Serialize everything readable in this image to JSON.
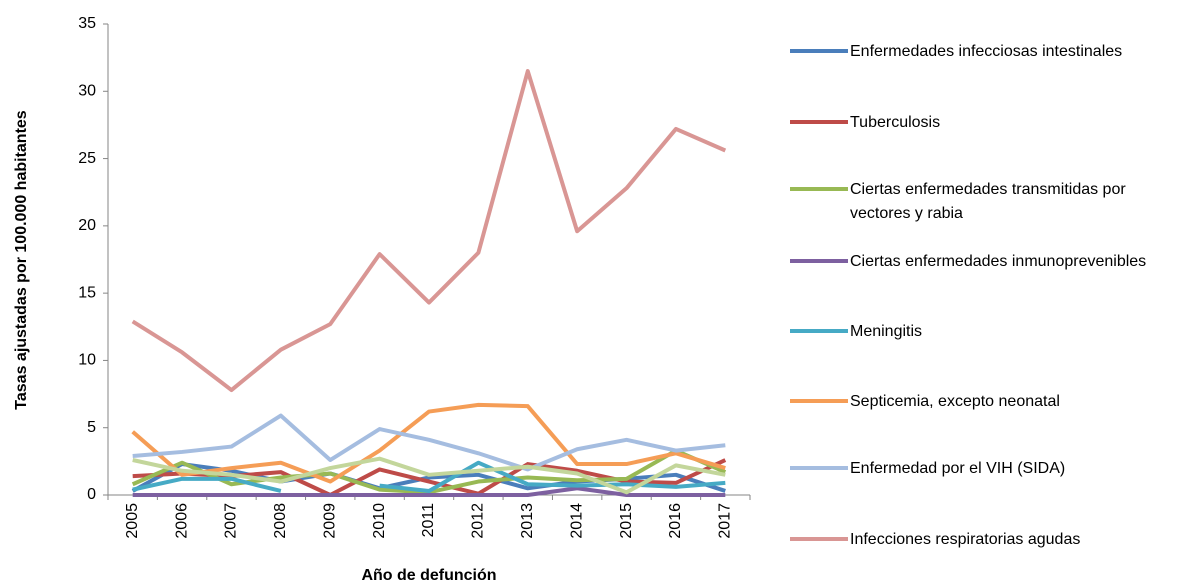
{
  "chart_data": {
    "type": "line",
    "xlabel": "Año de defunción",
    "ylabel": "Tasas ajustadas por 100.000 habitantes",
    "categories": [
      "2005",
      "2006",
      "2007",
      "2008",
      "2009",
      "2010",
      "2011",
      "2012",
      "2013",
      "2014",
      "2015",
      "2016",
      "2017"
    ],
    "ylim": [
      0,
      35
    ],
    "yticks": [
      0,
      5,
      10,
      15,
      20,
      25,
      30,
      35
    ],
    "series": [
      {
        "name": "Enfermedades infecciosas intestinales",
        "color": "#4a7ebb",
        "values": [
          0.3,
          2.3,
          1.8,
          1.0,
          1.6,
          0.5,
          1.3,
          1.5,
          0.5,
          1.0,
          1.2,
          1.5,
          0.3
        ]
      },
      {
        "name": "Tuberculosis",
        "color": "#be4b48",
        "values": [
          1.4,
          1.6,
          1.4,
          1.7,
          0.0,
          1.9,
          1.0,
          0.1,
          2.3,
          1.8,
          1.0,
          0.9,
          2.6
        ]
      },
      {
        "name": "Ciertas enfermedades transmitidas por vectores y rabia",
        "color": "#98b954",
        "values": [
          0.8,
          2.4,
          0.8,
          1.3,
          1.6,
          0.4,
          0.2,
          1.0,
          1.3,
          1.1,
          1.2,
          3.3,
          1.7
        ]
      },
      {
        "name": "Ciertas enfermedades inmunoprevenibles",
        "color": "#7d60a0",
        "values": [
          0,
          0,
          0,
          0,
          0,
          0,
          0,
          0,
          0,
          0.5,
          0,
          0,
          0
        ]
      },
      {
        "name": "Meningitis",
        "color": "#46aac5",
        "values": [
          0.4,
          1.2,
          1.2,
          0.3,
          null,
          0.7,
          0.3,
          2.4,
          0.8,
          0.7,
          0.8,
          0.6,
          0.9
        ]
      },
      {
        "name": "Septicemia, excepto neonatal",
        "color": "#f59d56",
        "values": [
          4.7,
          1.5,
          2.0,
          2.4,
          1.0,
          3.3,
          6.2,
          6.7,
          6.6,
          2.3,
          2.3,
          3.1,
          2.0
        ]
      },
      {
        "name": "Enfermedad por el VIH (SIDA)",
        "color": "#a5bde0",
        "values": [
          2.9,
          3.2,
          3.6,
          5.9,
          2.6,
          4.9,
          4.1,
          3.1,
          1.9,
          3.4,
          4.1,
          3.3,
          3.7
        ]
      },
      {
        "name": "Infecciones respiratorias agudas",
        "color": "#d99694",
        "values": [
          12.9,
          10.6,
          7.8,
          10.8,
          12.7,
          17.9,
          14.3,
          18.0,
          31.5,
          19.6,
          22.8,
          27.2,
          25.6
        ]
      },
      {
        "color": "#c3d69b",
        "values": [
          2.6,
          1.8,
          1.5,
          1.0,
          2.0,
          2.7,
          1.5,
          1.8,
          2.1,
          1.6,
          0.2,
          2.2,
          1.5
        ]
      }
    ]
  }
}
